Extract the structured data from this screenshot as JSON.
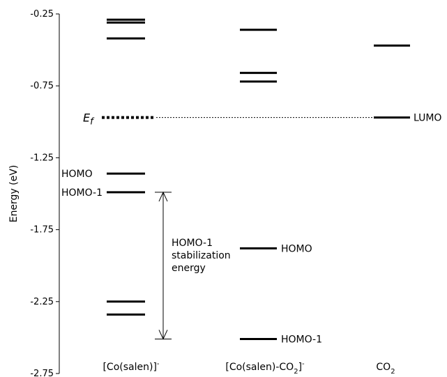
{
  "chart_data": {
    "type": "energy-level diagram",
    "ylabel": "Energy (eV)",
    "ylim": [
      -2.75,
      -0.25
    ],
    "yticks": [
      "-0.25",
      "-0.75",
      "-1.25",
      "-1.75",
      "-2.25",
      "-2.75"
    ],
    "categories": [
      {
        "base": "[Co(salen)]",
        "sup": "-",
        "sub": ""
      },
      {
        "base": "[Co(salen)-CO",
        "sub": "2",
        "post": "]",
        "sup": "-"
      },
      {
        "base": "CO",
        "sub": "2",
        "sup": ""
      }
    ],
    "levels": [
      {
        "column": 0,
        "energy": -0.31,
        "label": ""
      },
      {
        "column": 0,
        "energy": -0.29,
        "label": ""
      },
      {
        "column": 0,
        "energy": -0.42,
        "label": ""
      },
      {
        "column": 0,
        "energy": -1.36,
        "label": "HOMO"
      },
      {
        "column": 0,
        "energy": -1.49,
        "label": "HOMO-1"
      },
      {
        "column": 0,
        "energy": -2.25,
        "label": ""
      },
      {
        "column": 0,
        "energy": -2.34,
        "label": ""
      },
      {
        "column": 1,
        "energy": -0.36,
        "label": ""
      },
      {
        "column": 1,
        "energy": -0.66,
        "label": ""
      },
      {
        "column": 1,
        "energy": -0.72,
        "label": ""
      },
      {
        "column": 1,
        "energy": -1.88,
        "label": "HOMO"
      },
      {
        "column": 1,
        "energy": -2.51,
        "label": "HOMO-1"
      },
      {
        "column": 2,
        "energy": -0.47,
        "label": ""
      },
      {
        "column": 2,
        "energy": -0.97,
        "label": "LUMO"
      }
    ],
    "fermi": {
      "energy": -0.97,
      "label_main": "E",
      "label_sub": "f"
    },
    "annotation": {
      "lines": [
        "HOMO-1",
        "stabilization",
        "energy"
      ],
      "from_energy": -1.49,
      "to_energy": -2.51
    }
  }
}
